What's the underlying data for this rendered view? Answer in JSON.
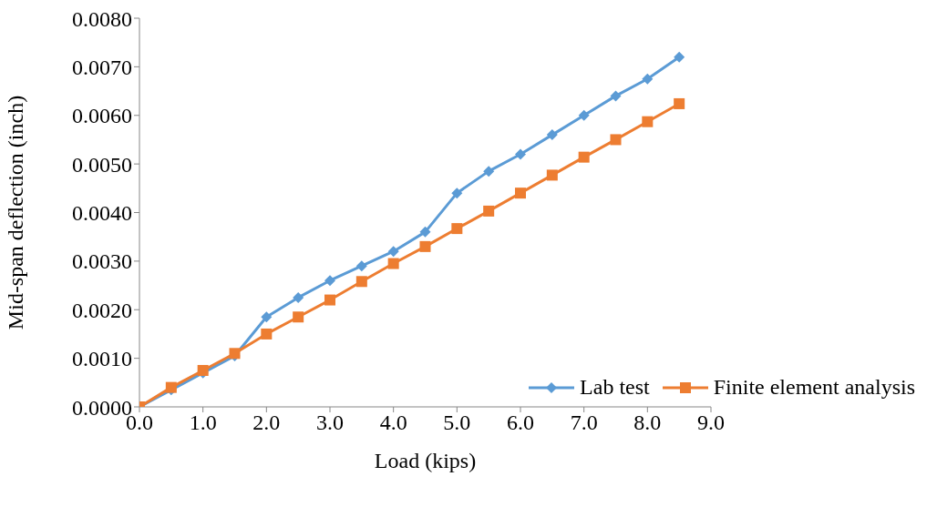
{
  "chart_data": {
    "type": "line",
    "xlabel": "Load (kips)",
    "ylabel": "Mid-span deflection (inch)",
    "x": [
      0,
      0.5,
      1,
      1.5,
      2,
      2.5,
      3,
      3.5,
      4,
      4.5,
      5,
      5.5,
      6,
      6.5,
      7,
      7.5,
      8,
      8.5
    ],
    "series": [
      {
        "name": "Lab test",
        "color": "#5b9bd5",
        "marker": "diamond",
        "values": [
          0,
          0.00035,
          0.0007,
          0.00105,
          0.00185,
          0.00225,
          0.0026,
          0.0029,
          0.0032,
          0.0036,
          0.0044,
          0.00485,
          0.0052,
          0.0056,
          0.006,
          0.0064,
          0.00675,
          0.0072
        ]
      },
      {
        "name": "Finite element analysis",
        "color": "#ed7d31",
        "marker": "square",
        "values": [
          0,
          0.0004,
          0.00075,
          0.0011,
          0.0015,
          0.00185,
          0.0022,
          0.00258,
          0.00295,
          0.0033,
          0.00367,
          0.00403,
          0.0044,
          0.00477,
          0.00514,
          0.0055,
          0.00587,
          0.00624
        ]
      }
    ],
    "xlim": [
      0,
      9
    ],
    "xticks": [
      {
        "value": 0,
        "label": "0.0"
      },
      {
        "value": 1,
        "label": "1.0"
      },
      {
        "value": 2,
        "label": "2.0"
      },
      {
        "value": 3,
        "label": "3.0"
      },
      {
        "value": 4,
        "label": "4.0"
      },
      {
        "value": 5,
        "label": "5.0"
      },
      {
        "value": 6,
        "label": "6.0"
      },
      {
        "value": 7,
        "label": "7.0"
      },
      {
        "value": 8,
        "label": "8.0"
      },
      {
        "value": 9,
        "label": "9.0"
      }
    ],
    "ylim": [
      0,
      0.008
    ],
    "yticks": [
      {
        "value": 0,
        "label": "0.0000"
      },
      {
        "value": 0.001,
        "label": "0.0010"
      },
      {
        "value": 0.002,
        "label": "0.0020"
      },
      {
        "value": 0.003,
        "label": "0.0030"
      },
      {
        "value": 0.004,
        "label": "0.0040"
      },
      {
        "value": 0.005,
        "label": "0.0050"
      },
      {
        "value": 0.006,
        "label": "0.0060"
      },
      {
        "value": 0.007,
        "label": "0.0070"
      },
      {
        "value": 0.008,
        "label": "0.0080"
      }
    ],
    "grid": false,
    "legend": "bottom right",
    "line_style": "solid"
  }
}
